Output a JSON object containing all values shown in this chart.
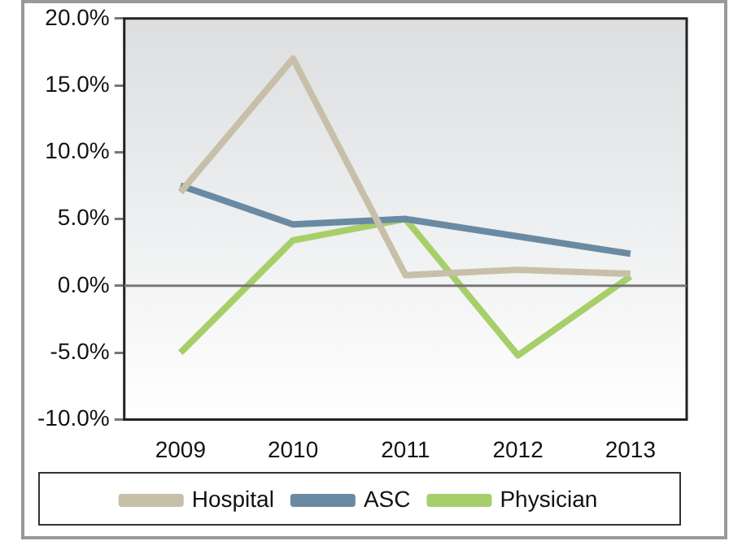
{
  "chart_data": {
    "type": "line",
    "categories": [
      "2009",
      "2010",
      "2011",
      "2012",
      "2013"
    ],
    "series": [
      {
        "name": "Hospital",
        "color": "#c8bfa8",
        "values": [
          7.0,
          17.0,
          0.8,
          1.2,
          0.9
        ]
      },
      {
        "name": "ASC",
        "color": "#6a8aa3",
        "values": [
          7.5,
          4.6,
          5.0,
          3.7,
          2.4
        ]
      },
      {
        "name": "Physician",
        "color": "#a6cf6a",
        "values": [
          -5.0,
          3.4,
          5.0,
          -5.2,
          0.7
        ]
      }
    ],
    "ylim": [
      -10,
      20
    ],
    "yticks": [
      {
        "value": -10,
        "label": "-10.0%"
      },
      {
        "value": -5,
        "label": "-5.0%"
      },
      {
        "value": 0,
        "label": "0.0%"
      },
      {
        "value": 5,
        "label": "5.0%"
      },
      {
        "value": 10,
        "label": "10.0%"
      },
      {
        "value": 15,
        "label": "15.0%"
      },
      {
        "value": 20,
        "label": "20.0%"
      }
    ],
    "ref_lines": [
      {
        "axis": "y",
        "value": 0,
        "color": "#777777"
      }
    ],
    "grid": false,
    "legend": "bottom",
    "marker": "none",
    "line_style": "solid"
  }
}
